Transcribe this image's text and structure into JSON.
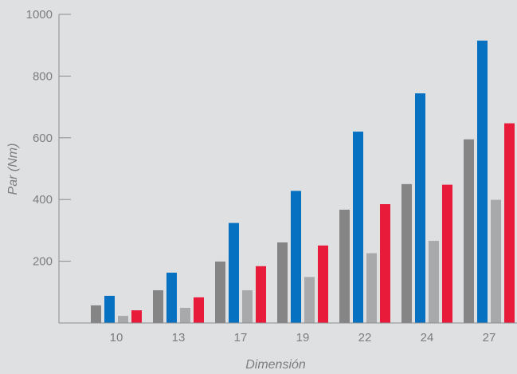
{
  "chart_data": {
    "type": "bar",
    "title": "",
    "xlabel": "Dimensión",
    "ylabel": "Par (Nm)",
    "categories": [
      "10",
      "13",
      "17",
      "19",
      "22",
      "24",
      "27"
    ],
    "ylim": [
      0,
      1000
    ],
    "yticks": [
      200,
      400,
      600,
      800,
      1000
    ],
    "grid": false,
    "series": [
      {
        "color": "#858585",
        "values": [
          57,
          106,
          199,
          261,
          367,
          450,
          595
        ]
      },
      {
        "color": "#0671c1",
        "values": [
          88,
          163,
          324,
          428,
          620,
          744,
          915
        ]
      },
      {
        "color": "#a8a9ab",
        "values": [
          23,
          49,
          106,
          149,
          226,
          266,
          399
        ]
      },
      {
        "color": "#e91b3a",
        "values": [
          41,
          83,
          184,
          251,
          385,
          448,
          647
        ]
      }
    ]
  }
}
